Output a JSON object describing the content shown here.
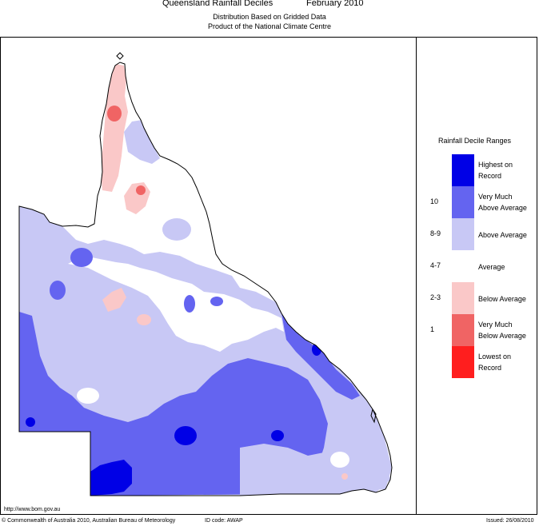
{
  "header": {
    "title": "Queensland Rainfall Deciles",
    "month": "February 2010",
    "subtitle1": "Distribution Based on Gridded Data",
    "subtitle2": "Product of the National Climate Centre"
  },
  "legend": {
    "title": "Rainfall Decile Ranges",
    "items": [
      {
        "range": "",
        "line1": "Highest on",
        "line2": "Record",
        "color": "#0000e6"
      },
      {
        "range": "10",
        "line1": "Very Much",
        "line2": "Above Average",
        "color": "#6464f0"
      },
      {
        "range": "8-9",
        "line1": "Above Average",
        "line2": "",
        "color": "#c8c8f5"
      },
      {
        "range": "4-7",
        "line1": "Average",
        "line2": "",
        "color": "#ffffff"
      },
      {
        "range": "2-3",
        "line1": "Below Average",
        "line2": "",
        "color": "#fac8c8"
      },
      {
        "range": "1",
        "line1": "Very Much",
        "line2": "Below Average",
        "color": "#f06464"
      },
      {
        "range": "",
        "line1": "Lowest on",
        "line2": "Record",
        "color": "#ff1e1e"
      }
    ]
  },
  "footer": {
    "url": "http://www.bom.gov.au",
    "copyright": "© Commonwealth of Australia 2010, Australian Bureau of Meteorology",
    "id_code": "ID code: AWAP",
    "issued": "Issued: 26/08/2010"
  },
  "colors": {
    "outline": "#000000",
    "above_average": "#c8c8f5",
    "very_much_above": "#6464f0",
    "highest": "#0000e6",
    "below_average": "#fac8c8",
    "very_much_below": "#f06464",
    "average": "#ffffff"
  }
}
